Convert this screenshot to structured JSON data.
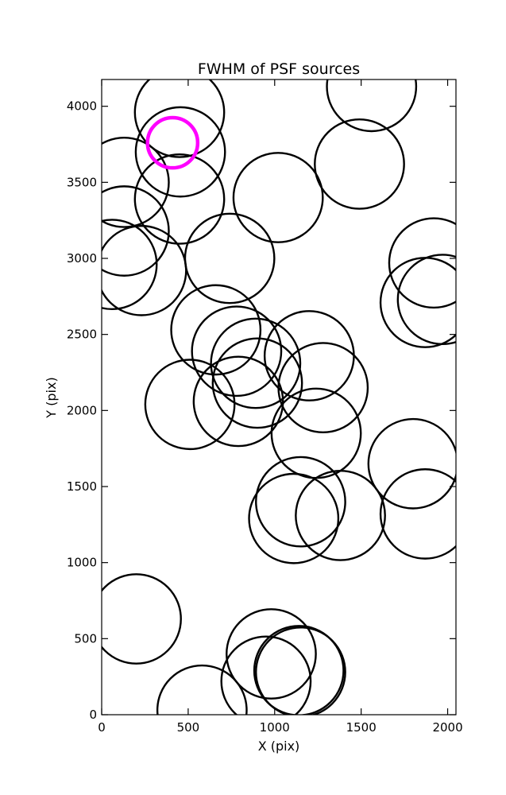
{
  "chart_data": {
    "type": "scatter",
    "title": "FWHM of PSF sources",
    "xlabel": "X (pix)",
    "ylabel": "Y (pix)",
    "xlim": [
      0,
      2048
    ],
    "ylim": [
      0,
      4176
    ],
    "xticks": [
      0,
      500,
      1000,
      1500,
      2000
    ],
    "yticks": [
      0,
      500,
      1000,
      1500,
      2000,
      2500,
      3000,
      3500,
      4000
    ],
    "grid": false,
    "legend": "none",
    "colors": {
      "sources": "#000000",
      "highlight": "#ff00ff"
    },
    "sources": [
      {
        "x": 450,
        "y": 3960,
        "r": 258
      },
      {
        "x": 1560,
        "y": 4130,
        "r": 258
      },
      {
        "x": 455,
        "y": 3700,
        "r": 258
      },
      {
        "x": 130,
        "y": 3500,
        "r": 258
      },
      {
        "x": 450,
        "y": 3390,
        "r": 258
      },
      {
        "x": 1020,
        "y": 3400,
        "r": 258
      },
      {
        "x": 1490,
        "y": 3620,
        "r": 258
      },
      {
        "x": 130,
        "y": 3180,
        "r": 258
      },
      {
        "x": 60,
        "y": 2960,
        "r": 258
      },
      {
        "x": 230,
        "y": 2920,
        "r": 258
      },
      {
        "x": 740,
        "y": 3000,
        "r": 258
      },
      {
        "x": 1920,
        "y": 2970,
        "r": 258
      },
      {
        "x": 1870,
        "y": 2710,
        "r": 258
      },
      {
        "x": 1970,
        "y": 2730,
        "r": 258
      },
      {
        "x": 660,
        "y": 2530,
        "r": 258
      },
      {
        "x": 780,
        "y": 2390,
        "r": 258
      },
      {
        "x": 890,
        "y": 2310,
        "r": 258
      },
      {
        "x": 1200,
        "y": 2360,
        "r": 258
      },
      {
        "x": 1280,
        "y": 2150,
        "r": 258
      },
      {
        "x": 510,
        "y": 2040,
        "r": 258
      },
      {
        "x": 790,
        "y": 2060,
        "r": 258
      },
      {
        "x": 900,
        "y": 2180,
        "r": 258
      },
      {
        "x": 1240,
        "y": 1850,
        "r": 258
      },
      {
        "x": 1800,
        "y": 1650,
        "r": 258
      },
      {
        "x": 1150,
        "y": 1400,
        "r": 258
      },
      {
        "x": 1110,
        "y": 1290,
        "r": 258
      },
      {
        "x": 1380,
        "y": 1310,
        "r": 258
      },
      {
        "x": 1870,
        "y": 1320,
        "r": 258
      },
      {
        "x": 200,
        "y": 630,
        "r": 258
      },
      {
        "x": 980,
        "y": 400,
        "r": 258
      },
      {
        "x": 950,
        "y": 220,
        "r": 258
      },
      {
        "x": 1140,
        "y": 290,
        "r": 258
      },
      {
        "x": 1150,
        "y": 280,
        "r": 258
      },
      {
        "x": 580,
        "y": 30,
        "r": 258
      }
    ],
    "highlight": {
      "x": 410,
      "y": 3760,
      "r": 145
    }
  }
}
